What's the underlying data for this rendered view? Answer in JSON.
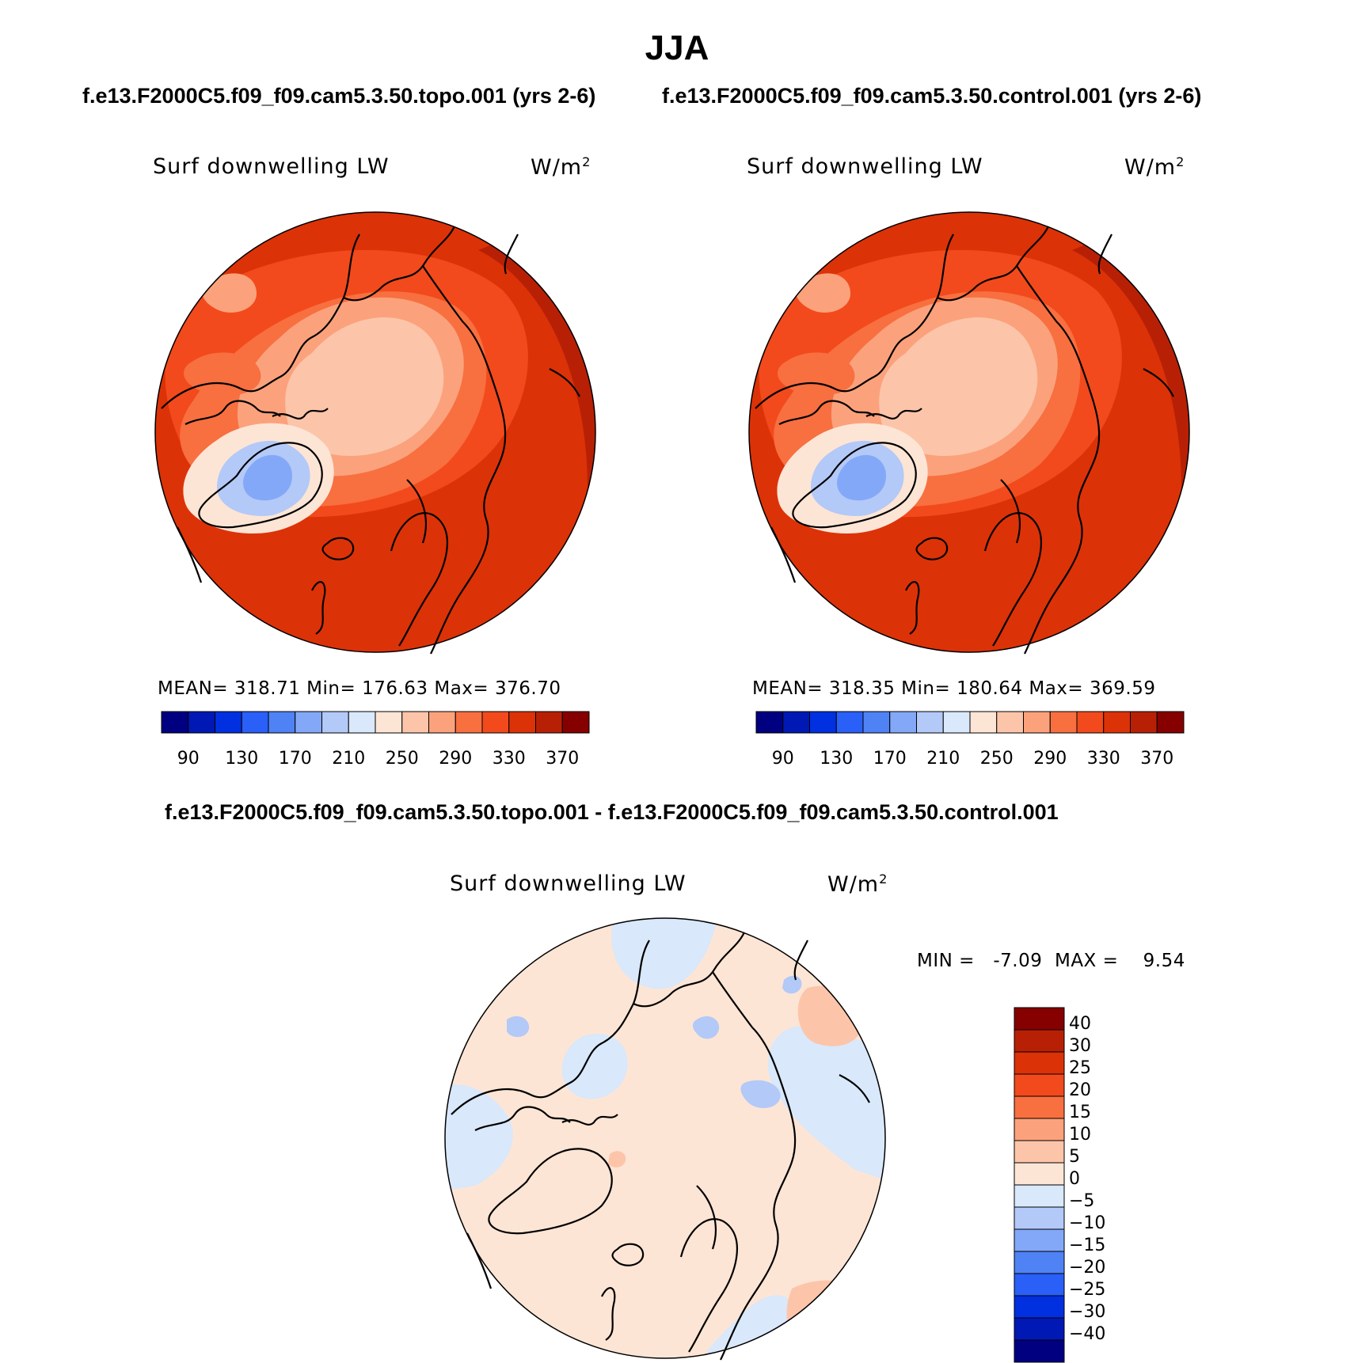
{
  "title": "JJA",
  "panels": {
    "left_case": "f.e13.F2000C5.f09_f09.cam5.3.50.topo.001 (yrs 2-6)",
    "right_case": "f.e13.F2000C5.f09_f09.cam5.3.50.control.001 (yrs 2-6)",
    "diff_case": "f.e13.F2000C5.f09_f09.cam5.3.50.topo.001 - f.e13.F2000C5.f09_f09.cam5.3.50.control.001"
  },
  "variable": "Surf downwelling LW",
  "units_base": "W/m",
  "units_exp": "2",
  "chart_data": [
    {
      "type": "heatmap",
      "projection": "north polar stereographic",
      "case": "f.e13.F2000C5.f09_f09.cam5.3.50.topo.001 (yrs 2-6)",
      "season": "JJA",
      "variable": "Surf downwelling LW",
      "units": "W/m2",
      "stats_text": "MEAN= 318.71   Min= 176.63   Max= 376.70",
      "mean": 318.71,
      "min": 176.63,
      "max": 376.7,
      "colorbar": {
        "orientation": "horizontal",
        "levels": [
          90,
          110,
          130,
          150,
          170,
          190,
          210,
          230,
          250,
          270,
          290,
          310,
          330,
          350,
          370
        ],
        "tick_labels": [
          "90",
          "130",
          "170",
          "210",
          "250",
          "290",
          "330",
          "370"
        ],
        "colors": [
          "#000080",
          "#0018b4",
          "#0030e0",
          "#2a5ff8",
          "#4f82f5",
          "#83a8f8",
          "#b3c9f8",
          "#d9e8fa",
          "#fde5d5",
          "#fcc5aa",
          "#fba27c",
          "#f86f40",
          "#f24a1c",
          "#dc3208",
          "#b82006",
          "#860000"
        ]
      }
    },
    {
      "type": "heatmap",
      "projection": "north polar stereographic",
      "case": "f.e13.F2000C5.f09_f09.cam5.3.50.control.001 (yrs 2-6)",
      "season": "JJA",
      "variable": "Surf downwelling LW",
      "units": "W/m2",
      "stats_text": "MEAN= 318.35   Min= 180.64   Max= 369.59",
      "mean": 318.35,
      "min": 180.64,
      "max": 369.59,
      "colorbar": {
        "orientation": "horizontal",
        "levels": [
          90,
          110,
          130,
          150,
          170,
          190,
          210,
          230,
          250,
          270,
          290,
          310,
          330,
          350,
          370
        ],
        "tick_labels": [
          "90",
          "130",
          "170",
          "210",
          "250",
          "290",
          "330",
          "370"
        ],
        "colors": [
          "#000080",
          "#0018b4",
          "#0030e0",
          "#2a5ff8",
          "#4f82f5",
          "#83a8f8",
          "#b3c9f8",
          "#d9e8fa",
          "#fde5d5",
          "#fcc5aa",
          "#fba27c",
          "#f86f40",
          "#f24a1c",
          "#dc3208",
          "#b82006",
          "#860000"
        ]
      }
    },
    {
      "type": "heatmap",
      "projection": "north polar stereographic",
      "case": "f.e13.F2000C5.f09_f09.cam5.3.50.topo.001 - f.e13.F2000C5.f09_f09.cam5.3.50.control.001",
      "variable": "Surf downwelling LW",
      "units": "W/m2",
      "stats_text": "MIN =   -7.09  MAX =    9.54",
      "min": -7.09,
      "max": 9.54,
      "colorbar": {
        "orientation": "vertical",
        "tick_labels": [
          "40",
          "30",
          "25",
          "20",
          "15",
          "10",
          "5",
          "0",
          "−5",
          "−10",
          "−15",
          "−20",
          "−25",
          "−30",
          "−40"
        ],
        "colors": [
          "#860000",
          "#b82006",
          "#dc3208",
          "#f24a1c",
          "#f86f40",
          "#fba27c",
          "#fcc5aa",
          "#fde5d5",
          "#d9e8fa",
          "#b3c9f8",
          "#83a8f8",
          "#4f82f5",
          "#2a5ff8",
          "#0030e0",
          "#0018b4",
          "#000080"
        ]
      }
    }
  ]
}
